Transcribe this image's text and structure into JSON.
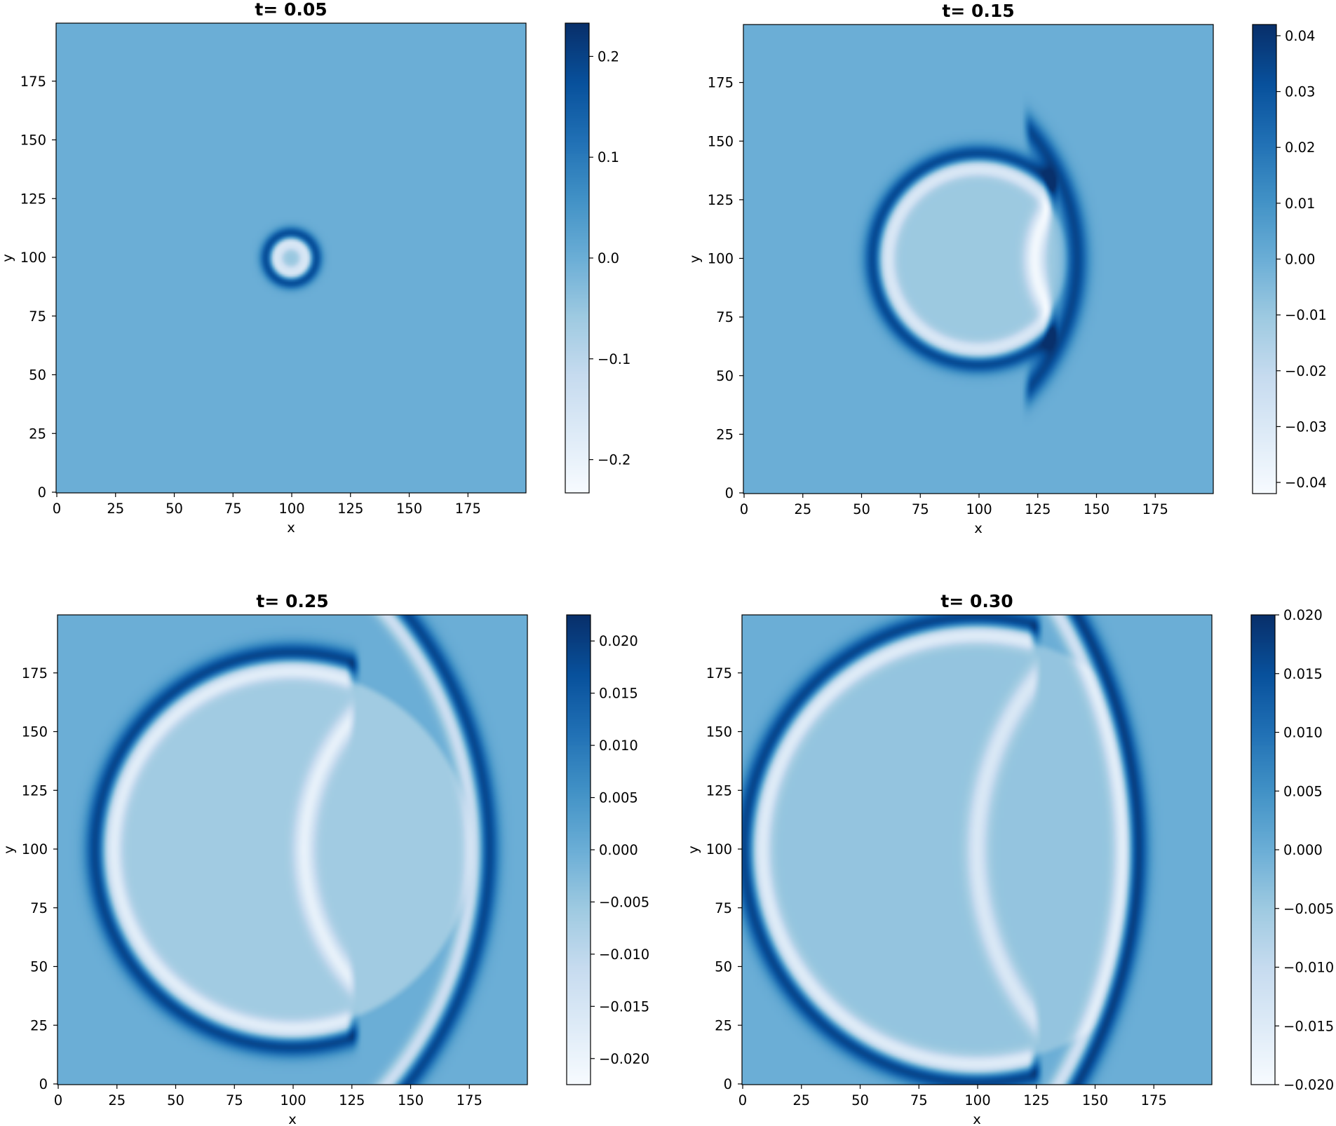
{
  "figure": {
    "colormap": "Blues",
    "colormap_stops": [
      "#f7fbff",
      "#deebf7",
      "#c6dbef",
      "#9ecae1",
      "#6baed6",
      "#4292c6",
      "#2171b5",
      "#08519c",
      "#08306b"
    ]
  },
  "chart_data": [
    {
      "type": "heatmap",
      "title": "t= 0.05",
      "xlabel": "x",
      "ylabel": "y",
      "xlim": [
        0,
        200
      ],
      "ylim": [
        0,
        200
      ],
      "xticks": [
        "0",
        "25",
        "50",
        "75",
        "100",
        "125",
        "150",
        "175"
      ],
      "yticks": [
        "0",
        "25",
        "50",
        "75",
        "100",
        "125",
        "150",
        "175"
      ],
      "colorbar": {
        "range": [
          -0.233,
          0.233
        ],
        "ticks": [
          -0.2,
          -0.1,
          0.0,
          0.1,
          0.2
        ],
        "tick_labels": [
          "−0.2",
          "−0.1",
          "0.0",
          "0.1",
          "0.2"
        ]
      },
      "field": {
        "description_free_params": true,
        "outer_front": {
          "center": [
            100,
            100
          ],
          "radius": 10,
          "peak": 0.233
        },
        "inner_trough": {
          "center": [
            100,
            100
          ],
          "radius": 7,
          "peak": -0.233
        },
        "core_value": -0.05
      }
    },
    {
      "type": "heatmap",
      "title": "t= 0.15",
      "xlabel": "x",
      "ylabel": "y",
      "xlim": [
        0,
        200
      ],
      "ylim": [
        0,
        200
      ],
      "xticks": [
        "0",
        "25",
        "50",
        "75",
        "100",
        "125",
        "150",
        "175"
      ],
      "yticks": [
        "0",
        "25",
        "50",
        "75",
        "100",
        "125",
        "150",
        "175"
      ],
      "colorbar": {
        "range": [
          -0.042,
          0.042
        ],
        "ticks": [
          -0.04,
          -0.03,
          -0.02,
          -0.01,
          0.0,
          0.01,
          0.02,
          0.03,
          0.04
        ],
        "tick_labels": [
          "−0.04",
          "−0.03",
          "−0.02",
          "−0.01",
          "0.00",
          "0.01",
          "0.02",
          "0.03",
          "0.04"
        ]
      },
      "field": {
        "outer_front": {
          "center": [
            100,
            100
          ],
          "radius": 44,
          "peak": 0.042,
          "clip_x_max": 133
        },
        "inner_trough": {
          "center": [
            100,
            100
          ],
          "radius": 40,
          "peak": -0.042,
          "clip_x_max": 130
        },
        "reflected_arc": {
          "center": [
            162,
            100
          ],
          "radius": 38,
          "peak": -0.03,
          "clip_x_max": 131
        },
        "lens_front": {
          "center": [
            58,
            100
          ],
          "radius": 84,
          "peak": 0.035,
          "x_min": 120
        },
        "interior_value": -0.01
      }
    },
    {
      "type": "heatmap",
      "title": "t= 0.25",
      "xlabel": "x",
      "ylabel": "y",
      "xlim": [
        0,
        200
      ],
      "ylim": [
        0,
        200
      ],
      "xticks": [
        "0",
        "25",
        "50",
        "75",
        "100",
        "125",
        "150",
        "175"
      ],
      "yticks": [
        "0",
        "25",
        "50",
        "75",
        "100",
        "125",
        "150",
        "175"
      ],
      "colorbar": {
        "range": [
          -0.0225,
          0.0225
        ],
        "ticks": [
          -0.02,
          -0.015,
          -0.01,
          -0.005,
          0.0,
          0.005,
          0.01,
          0.015,
          0.02
        ],
        "tick_labels": [
          "−0.020",
          "−0.015",
          "−0.010",
          "−0.005",
          "0.000",
          "0.005",
          "0.010",
          "0.015",
          "0.020"
        ]
      },
      "field": {
        "outer_front": {
          "center": [
            100,
            100
          ],
          "radius": 83,
          "peak": 0.0225,
          "clip_x_max": 128
        },
        "inner_trough": {
          "center": [
            100,
            100
          ],
          "radius": 78,
          "peak": -0.0225,
          "clip_x_max": 125
        },
        "reflected_arc": {
          "center": [
            191,
            100
          ],
          "radius": 86,
          "peak": -0.013,
          "clip_x_max": 126
        },
        "lens_front": {
          "center": [
            23,
            100
          ],
          "radius": 160,
          "peak": 0.021,
          "x_min": 124
        },
        "lens_trough": {
          "center": [
            23,
            100
          ],
          "radius": 155,
          "peak": -0.018,
          "x_min": 124
        },
        "interior_value": -0.006
      }
    },
    {
      "type": "heatmap",
      "title": "t= 0.30",
      "xlabel": "x",
      "ylabel": "y",
      "xlim": [
        0,
        200
      ],
      "ylim": [
        0,
        200
      ],
      "xticks": [
        "0",
        "25",
        "50",
        "75",
        "100",
        "125",
        "150",
        "175"
      ],
      "yticks": [
        "0",
        "25",
        "50",
        "75",
        "100",
        "125",
        "150",
        "175"
      ],
      "colorbar": {
        "range": [
          -0.02,
          0.02
        ],
        "ticks": [
          -0.02,
          -0.015,
          -0.01,
          -0.005,
          0.0,
          0.005,
          0.01,
          0.015,
          0.02
        ],
        "tick_labels": [
          "−0.020",
          "−0.015",
          "−0.010",
          "−0.005",
          "0.000",
          "0.005",
          "0.010",
          "0.015",
          "0.020"
        ]
      },
      "field": {
        "outer_front": {
          "center": [
            100,
            100
          ],
          "radius": 98,
          "peak": 0.02,
          "clip_x_max": 127
        },
        "inner_trough": {
          "center": [
            100,
            100
          ],
          "radius": 93,
          "peak": -0.02,
          "clip_x_max": 124
        },
        "reflected_arc": {
          "center": [
            218,
            100
          ],
          "radius": 118,
          "peak": -0.01,
          "clip_x_max": 126
        },
        "lens_front": {
          "center": [
            -35,
            100
          ],
          "radius": 203,
          "peak": 0.02,
          "x_min": 124
        },
        "lens_trough": {
          "center": [
            -35,
            100
          ],
          "radius": 198,
          "peak": -0.017,
          "x_min": 124
        },
        "interior_value": -0.004
      }
    }
  ]
}
